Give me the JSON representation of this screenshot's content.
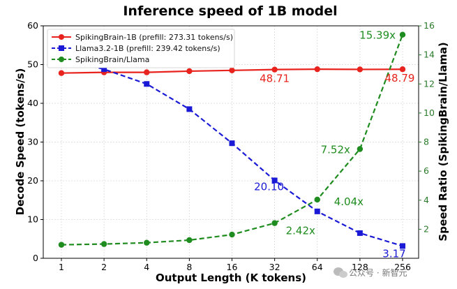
{
  "chart_data": {
    "type": "line",
    "title": "Inference speed of 1B model",
    "xlabel": "Output Length (K tokens)",
    "ylabel": "Decode Speed (tokens/s)",
    "y2label": "Speed Ratio (SpikingBrain/Llama)",
    "categories": [
      "1",
      "2",
      "4",
      "8",
      "16",
      "32",
      "64",
      "128",
      "256"
    ],
    "ylim": [
      0,
      60
    ],
    "y2lim": [
      0,
      16
    ],
    "yticks": [
      "0",
      "10",
      "20",
      "30",
      "40",
      "50",
      "60"
    ],
    "y2ticks": [
      "2",
      "4",
      "6",
      "8",
      "10",
      "12",
      "14",
      "16"
    ],
    "grid": true,
    "legend_position": "top-left",
    "series": [
      {
        "name": "SpikingBrain-1B (prefill: 273.31 tokens/s)",
        "axis": "left",
        "color": "#e8221c",
        "line": "solid",
        "marker": "circle",
        "values": [
          47.8,
          48.0,
          48.0,
          48.3,
          48.5,
          48.71,
          48.8,
          48.75,
          48.79
        ]
      },
      {
        "name": "Llama3.2-1B (prefill: 239.42 tokens/s)",
        "axis": "left",
        "color": "#1a1ad6",
        "line": "dashed",
        "marker": "square",
        "values": [
          51.5,
          48.8,
          45.0,
          38.5,
          29.7,
          20.1,
          12.1,
          6.5,
          3.17
        ]
      },
      {
        "name": "SpikingBrain/Llama",
        "axis": "right",
        "color": "#1e8c1e",
        "line": "dashed",
        "marker": "circle",
        "values": [
          0.93,
          0.98,
          1.07,
          1.25,
          1.63,
          2.42,
          4.04,
          7.52,
          15.39
        ]
      }
    ],
    "annotations": [
      {
        "text": "48.71",
        "series": 0,
        "index": 5,
        "color": "#e8221c"
      },
      {
        "text": "48.79",
        "series": 0,
        "index": 8,
        "color": "#e8221c"
      },
      {
        "text": "20.10",
        "series": 1,
        "index": 5,
        "color": "#1a1ad6"
      },
      {
        "text": "3.17",
        "series": 1,
        "index": 8,
        "color": "#1a1ad6"
      },
      {
        "text": "2.42x",
        "series": 2,
        "index": 5,
        "color": "#1e8c1e"
      },
      {
        "text": "4.04x",
        "series": 2,
        "index": 6,
        "color": "#1e8c1e"
      },
      {
        "text": "7.52x",
        "series": 2,
        "index": 7,
        "color": "#1e8c1e"
      },
      {
        "text": "15.39x",
        "series": 2,
        "index": 8,
        "color": "#1e8c1e"
      }
    ]
  },
  "watermark": "公众号 · 新智元",
  "watermark_icon": "wechat-icon"
}
